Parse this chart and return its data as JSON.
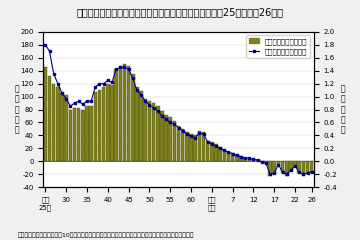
{
  "title": "図１　総人口の人口増減数及び人口増減率の推移（昭和25年〜平成26年）",
  "note": "（注）人口増減率は，前年10月から当年９月までの人口増減数を前年人口（閏算人口）で除したもの。",
  "ylabel_left": "人\n口\n増\n減\n数",
  "ylabel_right": "人\n口\n増\n減\n率",
  "ylim_left": [
    -40,
    200
  ],
  "ylim_right": [
    -0.4,
    2.0
  ],
  "bar_color": "#808020",
  "bar_edge_color": "#4a5010",
  "line_color": "#00008B",
  "background_color": "#f0f0f0",
  "plot_bg_color": "#ffffff",
  "x_tick_labels": [
    "昭和\n25年",
    "30",
    "35",
    "40",
    "45",
    "50",
    "55",
    "60",
    "平成\n２年",
    "7",
    "12",
    "17",
    "22",
    "26"
  ],
  "x_tick_positions": [
    0,
    5,
    10,
    15,
    20,
    25,
    30,
    35,
    40,
    45,
    50,
    55,
    60,
    64
  ],
  "yticks_left": [
    -40,
    -20,
    0,
    20,
    40,
    60,
    80,
    100,
    120,
    140,
    160,
    180,
    200
  ],
  "yticks_right": [
    -0.4,
    -0.2,
    0.0,
    0.2,
    0.4,
    0.6,
    0.8,
    1.0,
    1.2,
    1.4,
    1.6,
    1.8,
    2.0
  ],
  "bar_values": [
    145,
    132,
    120,
    115,
    105,
    102,
    80,
    83,
    83,
    80,
    85,
    85,
    107,
    110,
    115,
    120,
    118,
    142,
    148,
    150,
    148,
    135,
    115,
    108,
    97,
    93,
    90,
    85,
    78,
    72,
    68,
    62,
    55,
    50,
    45,
    42,
    40,
    47,
    45,
    32,
    30,
    27,
    22,
    18,
    15,
    13,
    10,
    8,
    5,
    5,
    3,
    2,
    -1,
    -3,
    -22,
    -20,
    -5,
    -18,
    -22,
    -15,
    -8,
    -18,
    -22,
    -20,
    -18
  ],
  "line_values": [
    1.8,
    1.7,
    1.35,
    1.2,
    1.05,
    0.97,
    0.85,
    0.9,
    0.93,
    0.88,
    0.93,
    0.93,
    1.15,
    1.2,
    1.2,
    1.25,
    1.22,
    1.42,
    1.45,
    1.45,
    1.42,
    1.28,
    1.1,
    1.03,
    0.93,
    0.87,
    0.82,
    0.78,
    0.7,
    0.65,
    0.6,
    0.57,
    0.52,
    0.47,
    0.42,
    0.39,
    0.36,
    0.44,
    0.42,
    0.3,
    0.27,
    0.24,
    0.2,
    0.17,
    0.14,
    0.12,
    0.09,
    0.07,
    0.05,
    0.05,
    0.03,
    0.02,
    -0.01,
    -0.03,
    -0.2,
    -0.18,
    -0.05,
    -0.17,
    -0.2,
    -0.14,
    -0.07,
    -0.17,
    -0.2,
    -0.18,
    -0.16
  ],
  "legend_bar_label": "人口増減数（左目盛）",
  "legend_line_label": "人口増減率（右目盛）",
  "title_fontsize": 7,
  "label_fontsize": 5.5,
  "tick_fontsize": 5,
  "note_fontsize": 4.5
}
